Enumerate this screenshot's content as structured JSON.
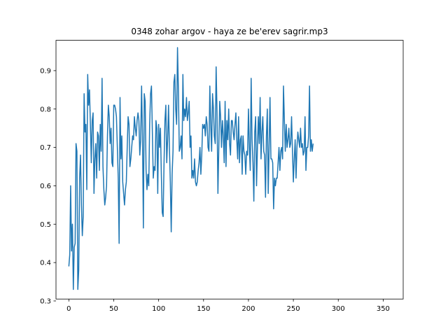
{
  "chart_data": {
    "type": "line",
    "title": "0348 zohar argov - haya ze be'erev sagrir.mp3",
    "xlabel": "",
    "ylabel": "",
    "xlim": [
      -14.3,
      372.3
    ],
    "ylim": [
      0.305,
      0.979
    ],
    "xticks": [
      0,
      50,
      100,
      150,
      200,
      250,
      300,
      350
    ],
    "yticks": [
      0.3,
      0.4,
      0.5,
      0.6,
      0.7,
      0.8,
      0.9
    ],
    "ytick_labels": [
      "0.3",
      "0.4",
      "0.5",
      "0.6",
      "0.7",
      "0.8",
      "0.9"
    ],
    "grid": false,
    "line_color": "#1f77b4",
    "series": [
      {
        "x_start": 0,
        "x_step": 1,
        "values": [
          0.39,
          0.42,
          0.6,
          0.43,
          0.5,
          0.33,
          0.44,
          0.45,
          0.71,
          0.69,
          0.33,
          0.38,
          0.62,
          0.68,
          0.55,
          0.47,
          0.52,
          0.84,
          0.74,
          0.76,
          0.59,
          0.89,
          0.81,
          0.85,
          0.76,
          0.66,
          0.77,
          0.79,
          0.58,
          0.67,
          0.71,
          0.62,
          0.74,
          0.73,
          0.64,
          0.76,
          0.69,
          0.88,
          0.65,
          0.59,
          0.55,
          0.57,
          0.6,
          0.73,
          0.81,
          0.78,
          0.71,
          0.75,
          0.66,
          0.65,
          0.81,
          0.81,
          0.8,
          0.78,
          0.7,
          0.62,
          0.45,
          0.83,
          0.67,
          0.73,
          0.61,
          0.58,
          0.55,
          0.59,
          0.61,
          0.7,
          0.78,
          0.76,
          0.65,
          0.67,
          0.7,
          0.73,
          0.72,
          0.78,
          0.75,
          0.73,
          0.77,
          0.79,
          0.77,
          0.68,
          0.72,
          0.86,
          0.73,
          0.49,
          0.84,
          0.82,
          0.64,
          0.59,
          0.63,
          0.6,
          0.76,
          0.84,
          0.86,
          0.74,
          0.62,
          0.65,
          0.64,
          0.77,
          0.75,
          0.58,
          0.76,
          0.7,
          0.75,
          0.63,
          0.53,
          0.52,
          0.66,
          0.77,
          0.81,
          0.66,
          0.72,
          0.81,
          0.7,
          0.61,
          0.48,
          0.63,
          0.69,
          0.87,
          0.89,
          0.8,
          0.76,
          0.96,
          0.85,
          0.69,
          0.7,
          0.73,
          0.67,
          0.89,
          0.77,
          0.8,
          0.78,
          0.83,
          0.77,
          0.79,
          0.82,
          0.7,
          0.73,
          0.62,
          0.64,
          0.62,
          0.67,
          0.61,
          0.6,
          0.61,
          0.64,
          0.66,
          0.7,
          0.63,
          0.68,
          0.76,
          0.75,
          0.76,
          0.73,
          0.78,
          0.76,
          0.7,
          0.69,
          0.86,
          0.76,
          0.69,
          0.84,
          0.8,
          0.73,
          0.71,
          0.91,
          0.79,
          0.58,
          0.7,
          0.82,
          0.78,
          0.7,
          0.77,
          0.73,
          0.66,
          0.82,
          0.65,
          0.77,
          0.72,
          0.8,
          0.71,
          0.68,
          0.77,
          0.77,
          0.74,
          0.72,
          0.76,
          0.79,
          0.72,
          0.67,
          0.78,
          0.66,
          0.72,
          0.73,
          0.63,
          0.73,
          0.69,
          0.68,
          0.63,
          0.69,
          0.68,
          0.8,
          0.7,
          0.64,
          0.88,
          0.72,
          0.66,
          0.56,
          0.74,
          0.78,
          0.6,
          0.7,
          0.78,
          0.71,
          0.83,
          0.67,
          0.74,
          0.78,
          0.69,
          0.68,
          0.57,
          0.73,
          0.8,
          0.58,
          0.7,
          0.83,
          0.67,
          0.67,
          0.66,
          0.54,
          0.62,
          0.6,
          0.62,
          0.62,
          0.66,
          0.7,
          0.64,
          0.69,
          0.7,
          0.67,
          0.86,
          0.77,
          0.69,
          0.76,
          0.7,
          0.72,
          0.75,
          0.7,
          0.71,
          0.78,
          0.69,
          0.61,
          0.67,
          0.72,
          0.62,
          0.7,
          0.74,
          0.72,
          0.7,
          0.75,
          0.7,
          0.71,
          0.68,
          0.69,
          0.78,
          0.64,
          0.7,
          0.7,
          0.73,
          0.86,
          0.69,
          0.72,
          0.69,
          0.71
        ]
      }
    ]
  }
}
